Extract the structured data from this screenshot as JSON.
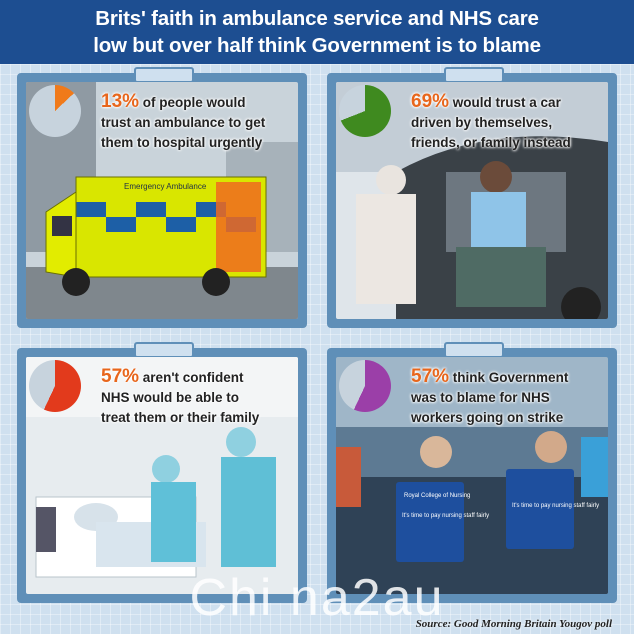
{
  "header": {
    "line1": "Brits' faith in ambulance service and NHS care",
    "line2": "low but over half think Government is to blame"
  },
  "cards": [
    {
      "percent": "13%",
      "pie_value": 0.13,
      "pie_color": "#f07a1a",
      "line1": "of people would",
      "line2": "trust an ambulance to get",
      "line3": "them to hospital urgently",
      "vehicle_text": "Emergency Ambulance"
    },
    {
      "percent": "69%",
      "pie_value": 0.69,
      "pie_color": "#3f8a1f",
      "line1": "would trust a car",
      "line2": "driven by themselves,",
      "line3": "friends, or family instead"
    },
    {
      "percent": "57%",
      "pie_value": 0.57,
      "pie_color": "#e23a1c",
      "line1": "aren't confident",
      "line2": "NHS would be able to",
      "line3": "treat them or their family"
    },
    {
      "percent": "57%",
      "pie_value": 0.57,
      "pie_color": "#9b3fa8",
      "line1": "think Government",
      "line2": "was to blame for NHS",
      "line3": "workers going on strike",
      "sign1": "Royal College of Nursing",
      "sign2": "It's time to pay nursing staff fairly",
      "sign3": "It's time to pay nursing staff fairly"
    }
  ],
  "pie_remainder_color": "#c7d3dd",
  "source": "Source: Good Morning Britain Yougov poll",
  "watermark": "Chi na2au"
}
